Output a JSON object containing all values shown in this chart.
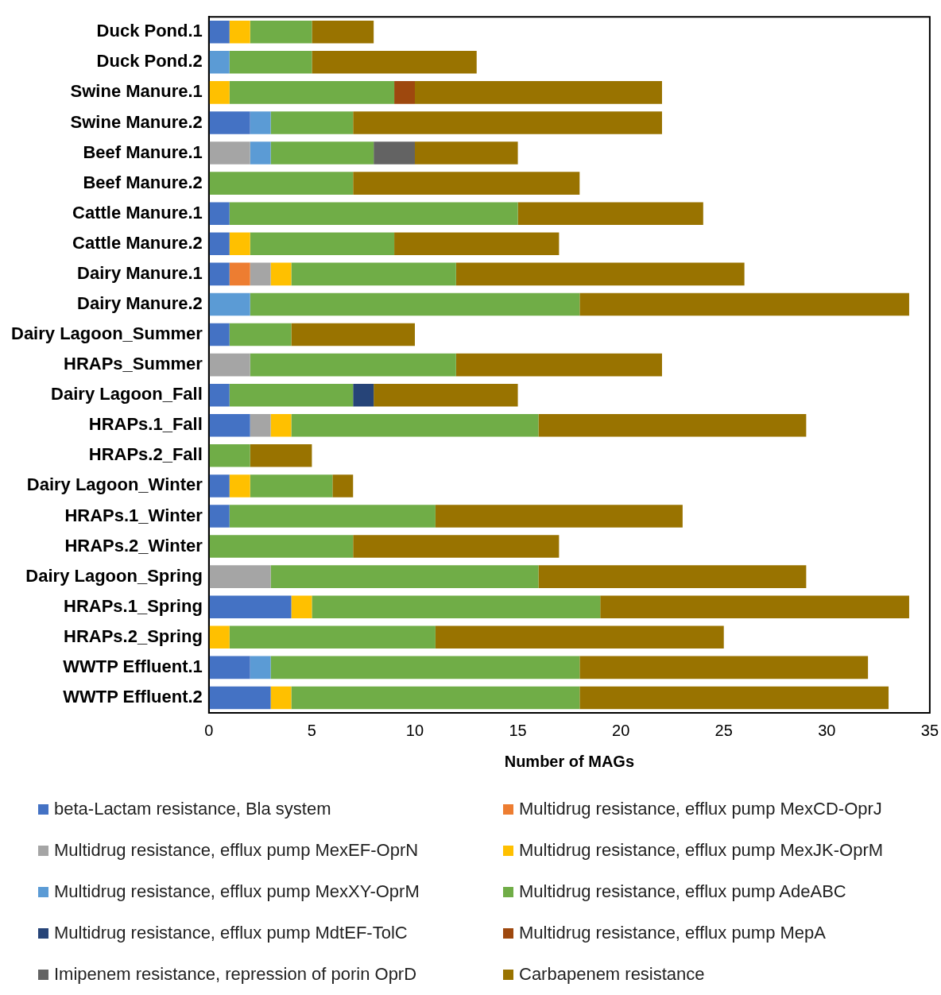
{
  "chart_data": {
    "type": "bar",
    "orientation": "horizontal",
    "stacked": true,
    "xlabel": "Number of MAGs",
    "categories": [
      "Duck Pond.1",
      "Duck Pond.2",
      "Swine Manure.1",
      "Swine Manure.2",
      "Beef Manure.1",
      "Beef Manure.2",
      "Cattle Manure.1",
      "Cattle Manure.2",
      "Dairy Manure.1",
      "Dairy Manure.2",
      "Dairy Lagoon_Summer",
      "HRAPs_Summer",
      "Dairy Lagoon_Fall",
      "HRAPs.1_Fall",
      "HRAPs.2_Fall",
      "Dairy Lagoon_Winter",
      "HRAPs.1_Winter",
      "HRAPs.2_Winter",
      "Dairy Lagoon_Spring",
      "HRAPs.1_Spring",
      "HRAPs.2_Spring",
      "WWTP Effluent.1",
      "WWTP Effluent.2"
    ],
    "series": [
      {
        "name": "beta-Lactam resistance, Bla system",
        "color": "#4472c4",
        "values": [
          1,
          null,
          null,
          2,
          null,
          null,
          1,
          1,
          1,
          null,
          1,
          null,
          1,
          2,
          null,
          1,
          1,
          null,
          null,
          4,
          null,
          2,
          3
        ]
      },
      {
        "name": "Multidrug resistance, efflux pump MexCD-OprJ",
        "color": "#ed7d31",
        "values": [
          null,
          null,
          null,
          null,
          null,
          null,
          null,
          null,
          1,
          null,
          null,
          null,
          null,
          null,
          null,
          null,
          null,
          null,
          null,
          null,
          null,
          null,
          null
        ]
      },
      {
        "name": "Multidrug resistance, efflux pump MexEF-OprN",
        "color": "#a5a5a5",
        "values": [
          null,
          null,
          null,
          null,
          2,
          null,
          null,
          null,
          1,
          null,
          null,
          2,
          null,
          1,
          null,
          null,
          null,
          null,
          3,
          null,
          null,
          null,
          null
        ]
      },
      {
        "name": "Multidrug resistance, efflux pump MexJK-OprM",
        "color": "#ffc000",
        "values": [
          1,
          null,
          1,
          null,
          null,
          null,
          null,
          1,
          1,
          null,
          null,
          null,
          null,
          1,
          null,
          1,
          null,
          null,
          null,
          1,
          1,
          null,
          1
        ]
      },
      {
        "name": "Multidrug resistance, efflux pump MexXY-OprM",
        "color": "#5b9bd5",
        "values": [
          null,
          1,
          null,
          1,
          1,
          null,
          null,
          null,
          null,
          2,
          null,
          null,
          null,
          null,
          null,
          null,
          null,
          null,
          null,
          null,
          null,
          1,
          null
        ]
      },
      {
        "name": "Multidrug resistance, efflux pump AdeABC",
        "color": "#70ad47",
        "values": [
          3,
          4,
          8,
          4,
          5,
          7,
          14,
          7,
          8,
          16,
          3,
          10,
          6,
          12,
          2,
          4,
          10,
          7,
          13,
          14,
          10,
          15,
          14
        ]
      },
      {
        "name": "Multidrug resistance, efflux pump MdtEF-TolC",
        "color": "#264478",
        "values": [
          null,
          null,
          null,
          null,
          null,
          null,
          null,
          null,
          null,
          null,
          null,
          null,
          1,
          null,
          null,
          null,
          null,
          null,
          null,
          null,
          null,
          null,
          null
        ]
      },
      {
        "name": "Multidrug resistance, efflux pump MepA",
        "color": "#9e480e",
        "values": [
          null,
          null,
          1,
          null,
          null,
          null,
          null,
          null,
          null,
          null,
          null,
          null,
          null,
          null,
          null,
          null,
          null,
          null,
          null,
          null,
          null,
          null,
          null
        ]
      },
      {
        "name": "Imipenem resistance, repression of porin OprD",
        "color": "#636363",
        "values": [
          null,
          null,
          null,
          null,
          2,
          null,
          null,
          null,
          null,
          null,
          null,
          null,
          null,
          null,
          null,
          null,
          null,
          null,
          null,
          null,
          null,
          null,
          null
        ]
      },
      {
        "name": "Carbapenem resistance",
        "color": "#997300",
        "values": [
          3,
          8,
          12,
          15,
          5,
          11,
          9,
          8,
          14,
          16,
          6,
          10,
          7,
          13,
          3,
          1,
          12,
          10,
          13,
          15,
          14,
          14,
          15
        ]
      }
    ],
    "xlim": [
      0,
      35
    ],
    "xticks": [
      0,
      5,
      10,
      15,
      20,
      25,
      30,
      35
    ],
    "grid": false,
    "legend": "bottom"
  }
}
